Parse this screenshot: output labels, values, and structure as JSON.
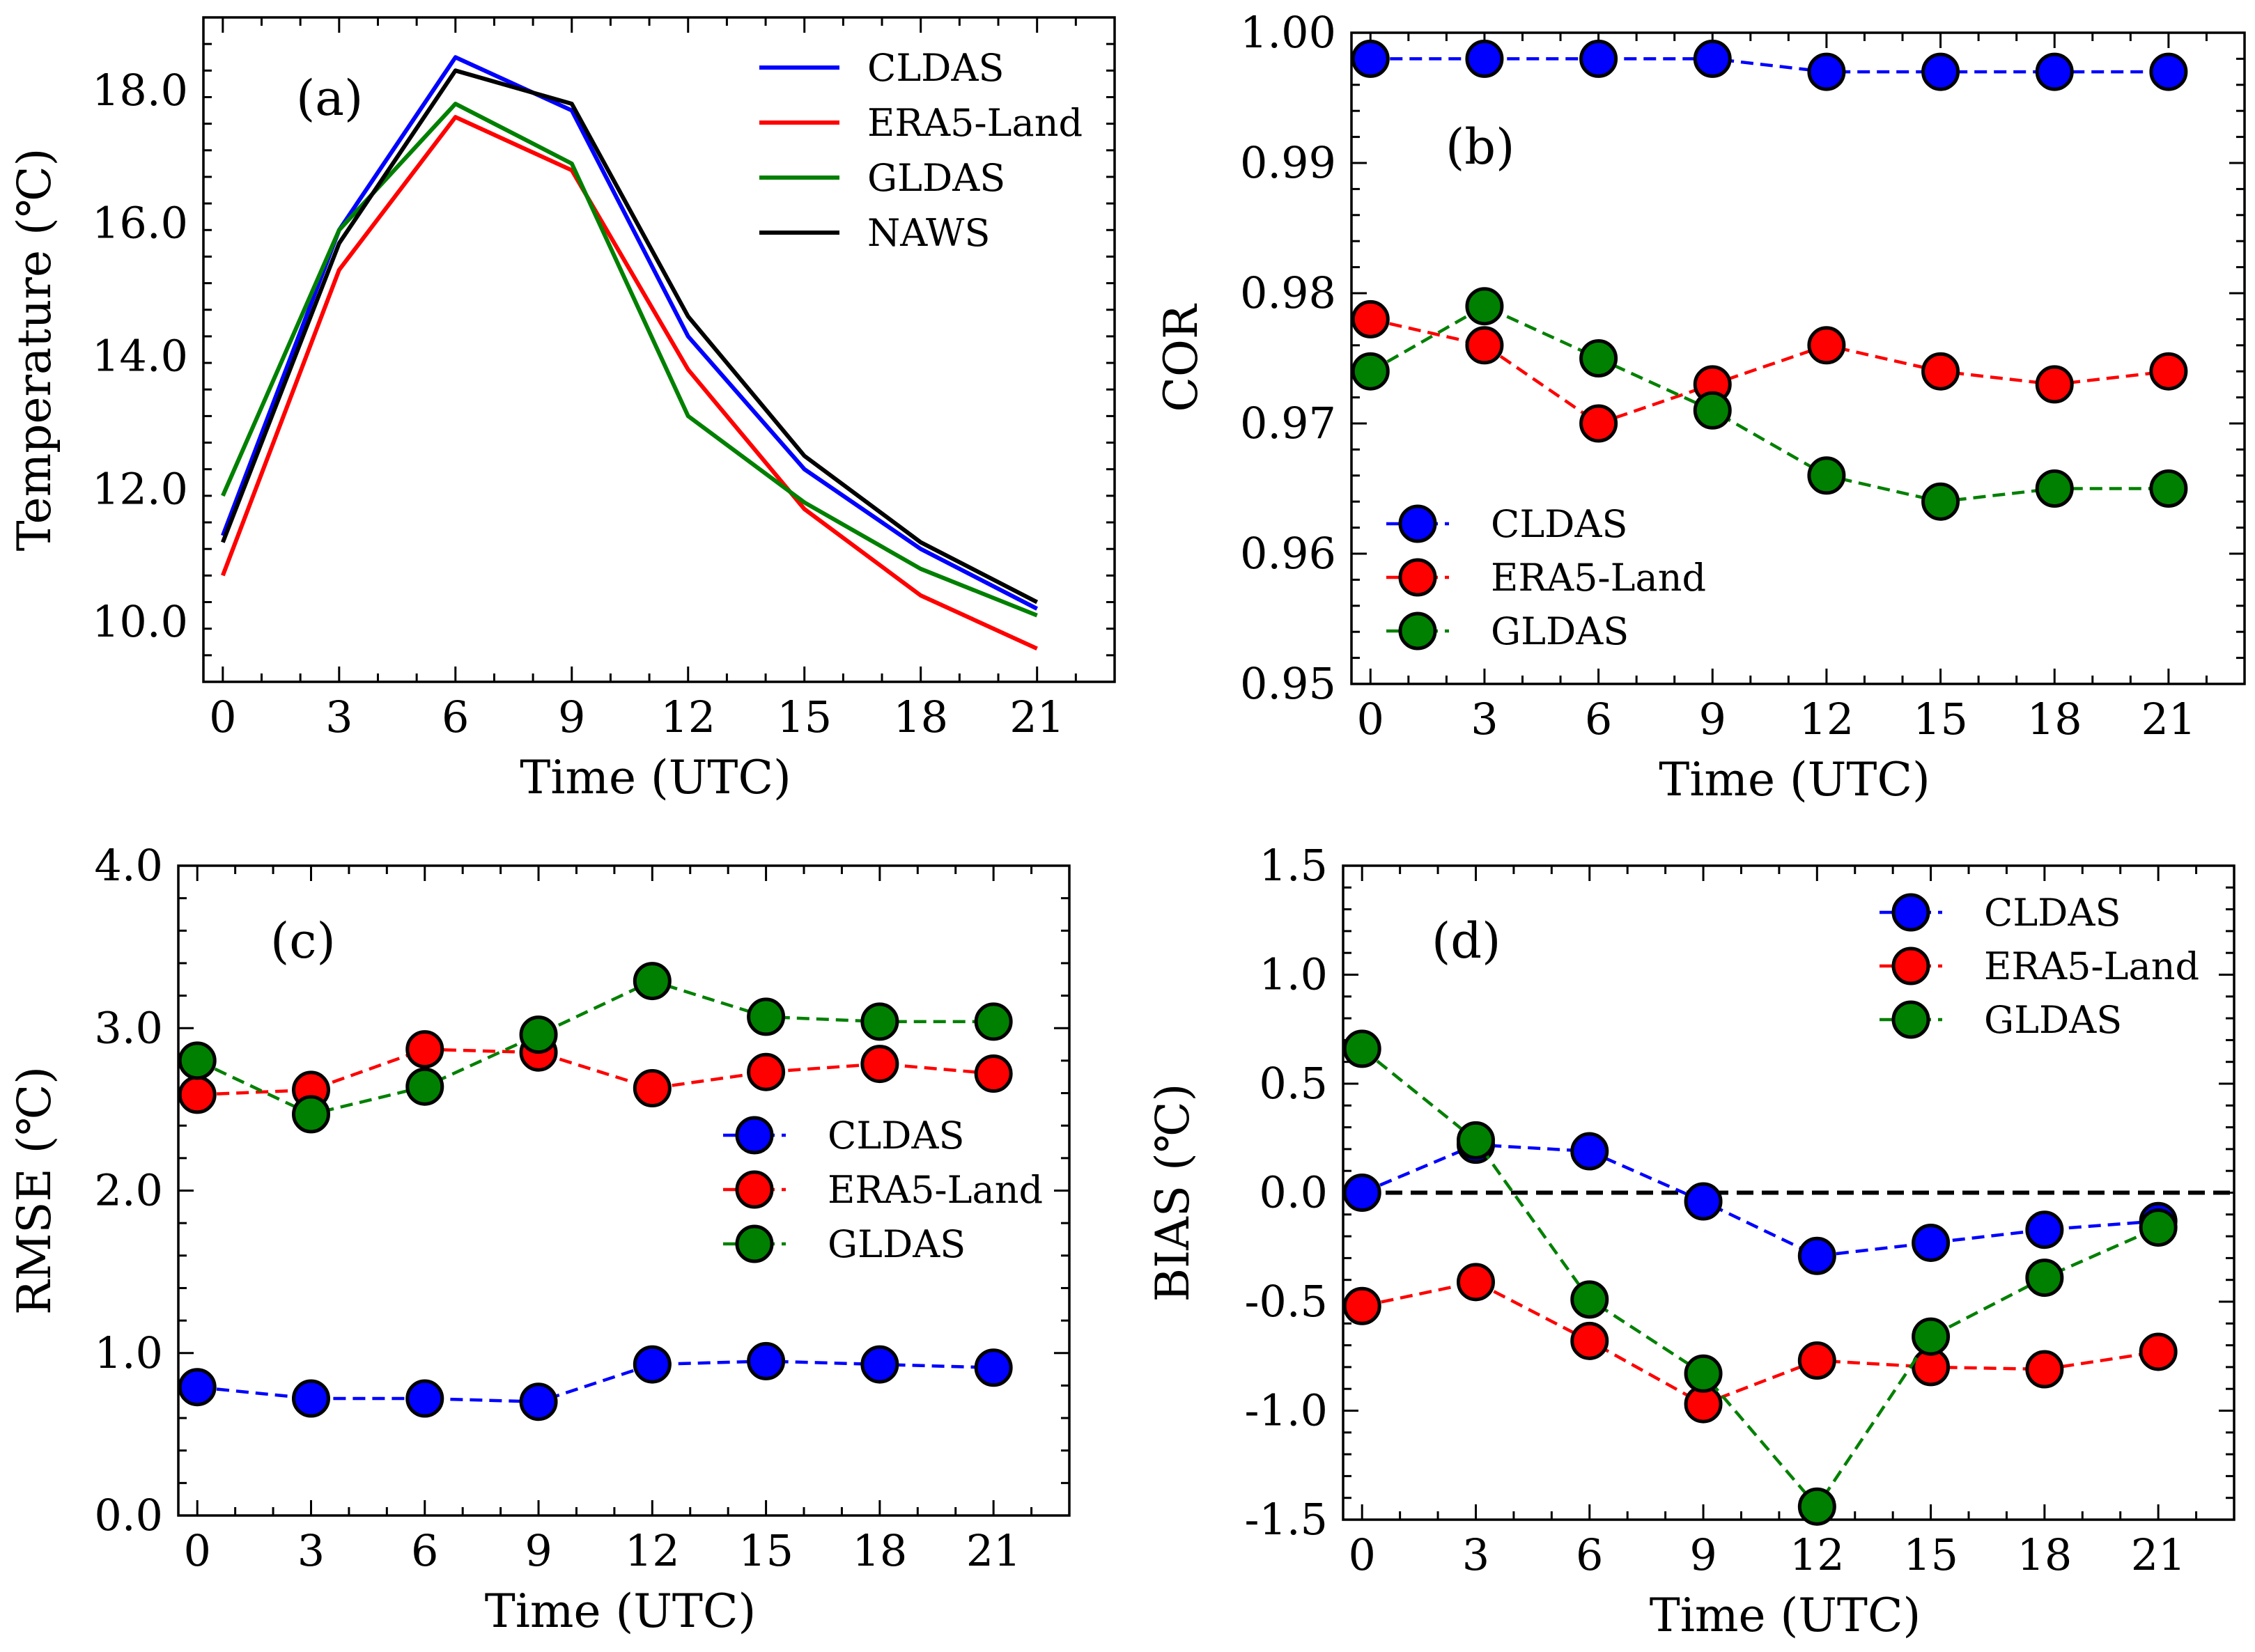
{
  "chart_data": [
    {
      "id": "a",
      "type": "line",
      "panel_label": "(a)",
      "xlabel": "Time (UTC)",
      "ylabel": "Temperature (℃)",
      "x": [
        0,
        3,
        6,
        9,
        12,
        15,
        18,
        21
      ],
      "xticks": [
        "0",
        "3",
        "6",
        "9",
        "12",
        "15",
        "18",
        "21"
      ],
      "xlim": [
        -0.5,
        23
      ],
      "ylim": [
        9.1,
        19.1
      ],
      "yticks": [
        10.0,
        12.0,
        14.0,
        16.0,
        18.0
      ],
      "ytick_labels": [
        "10.0",
        "12.0",
        "14.0",
        "16.0",
        "18.0"
      ],
      "series": [
        {
          "name": "CLDAS",
          "color": "#0000ff",
          "values": [
            11.3,
            15.9,
            18.5,
            17.7,
            14.3,
            12.3,
            11.1,
            10.2
          ]
        },
        {
          "name": "ERA5-Land",
          "color": "#ff0000",
          "values": [
            10.7,
            15.3,
            17.6,
            16.8,
            13.8,
            11.7,
            10.4,
            9.6
          ]
        },
        {
          "name": "GLDAS",
          "color": "#008000",
          "values": [
            11.9,
            15.9,
            17.8,
            16.9,
            13.1,
            11.8,
            10.8,
            10.1
          ]
        },
        {
          "name": "NAWS",
          "color": "#000000",
          "values": [
            11.2,
            15.7,
            18.3,
            17.8,
            14.6,
            12.5,
            11.2,
            10.3
          ]
        }
      ],
      "legend_position": "top-right"
    },
    {
      "id": "b",
      "type": "line",
      "panel_label": "(b)",
      "xlabel": "Time (UTC)",
      "ylabel": "COR",
      "x": [
        0,
        3,
        6,
        9,
        12,
        15,
        18,
        21
      ],
      "xticks": [
        "0",
        "3",
        "6",
        "9",
        "12",
        "15",
        "18",
        "21"
      ],
      "xlim": [
        -0.5,
        23
      ],
      "ylim": [
        0.95,
        1.0
      ],
      "yticks": [
        0.95,
        0.96,
        0.97,
        0.98,
        0.99,
        1.0
      ],
      "ytick_labels": [
        "0.95",
        "0.96",
        "0.97",
        "0.98",
        "0.99",
        "1.00"
      ],
      "series": [
        {
          "name": "CLDAS",
          "color": "#0000ff",
          "values": [
            0.998,
            0.998,
            0.998,
            0.998,
            0.997,
            0.997,
            0.997,
            0.997
          ]
        },
        {
          "name": "ERA5-Land",
          "color": "#ff0000",
          "values": [
            0.978,
            0.976,
            0.97,
            0.973,
            0.976,
            0.974,
            0.973,
            0.974
          ]
        },
        {
          "name": "GLDAS",
          "color": "#008000",
          "values": [
            0.974,
            0.979,
            0.975,
            0.971,
            0.966,
            0.964,
            0.965,
            0.965
          ]
        }
      ],
      "legend_position": "bottom-left"
    },
    {
      "id": "c",
      "type": "line",
      "panel_label": "(c)",
      "xlabel": "Time (UTC)",
      "ylabel": "RMSE (℃)",
      "x": [
        0,
        3,
        6,
        9,
        12,
        15,
        18,
        21
      ],
      "xticks": [
        "0",
        "3",
        "6",
        "9",
        "12",
        "15",
        "18",
        "21"
      ],
      "xlim": [
        -0.5,
        23
      ],
      "ylim": [
        0.0,
        4.0
      ],
      "yticks": [
        0.0,
        1.0,
        2.0,
        3.0,
        4.0
      ],
      "ytick_labels": [
        "0.0",
        "1.0",
        "2.0",
        "3.0",
        "4.0"
      ],
      "series": [
        {
          "name": "CLDAS",
          "color": "#0000ff",
          "values": [
            0.79,
            0.72,
            0.72,
            0.7,
            0.93,
            0.95,
            0.93,
            0.91
          ]
        },
        {
          "name": "ERA5-Land",
          "color": "#ff0000",
          "values": [
            2.59,
            2.62,
            2.87,
            2.85,
            2.63,
            2.73,
            2.78,
            2.72
          ]
        },
        {
          "name": "GLDAS",
          "color": "#008000",
          "values": [
            2.8,
            2.47,
            2.64,
            2.96,
            3.29,
            3.07,
            3.04,
            3.04
          ]
        }
      ],
      "legend_position": "center-right"
    },
    {
      "id": "d",
      "type": "line",
      "panel_label": "(d)",
      "xlabel": "Time (UTC)",
      "ylabel": "BIAS (℃)",
      "x": [
        0,
        3,
        6,
        9,
        12,
        15,
        18,
        21
      ],
      "xticks": [
        "0",
        "3",
        "6",
        "9",
        "12",
        "15",
        "18",
        "21"
      ],
      "xlim": [
        -0.5,
        23
      ],
      "ylim": [
        -1.5,
        1.5
      ],
      "yticks": [
        -1.5,
        -1.0,
        -0.5,
        0.0,
        0.5,
        1.0,
        1.5
      ],
      "ytick_labels": [
        "-1.5",
        "-1.0",
        "-0.5",
        "0.0",
        "0.5",
        "1.0",
        "1.5"
      ],
      "zero_line": true,
      "series": [
        {
          "name": "CLDAS",
          "color": "#0000ff",
          "values": [
            0.0,
            0.22,
            0.19,
            -0.04,
            -0.29,
            -0.23,
            -0.17,
            -0.13
          ]
        },
        {
          "name": "ERA5-Land",
          "color": "#ff0000",
          "values": [
            -0.52,
            -0.41,
            -0.68,
            -0.97,
            -0.77,
            -0.8,
            -0.81,
            -0.73
          ]
        },
        {
          "name": "GLDAS",
          "color": "#008000",
          "values": [
            0.66,
            0.24,
            -0.49,
            -0.83,
            -1.44,
            -0.66,
            -0.39,
            -0.16
          ]
        }
      ],
      "legend_position": "top-right"
    }
  ]
}
